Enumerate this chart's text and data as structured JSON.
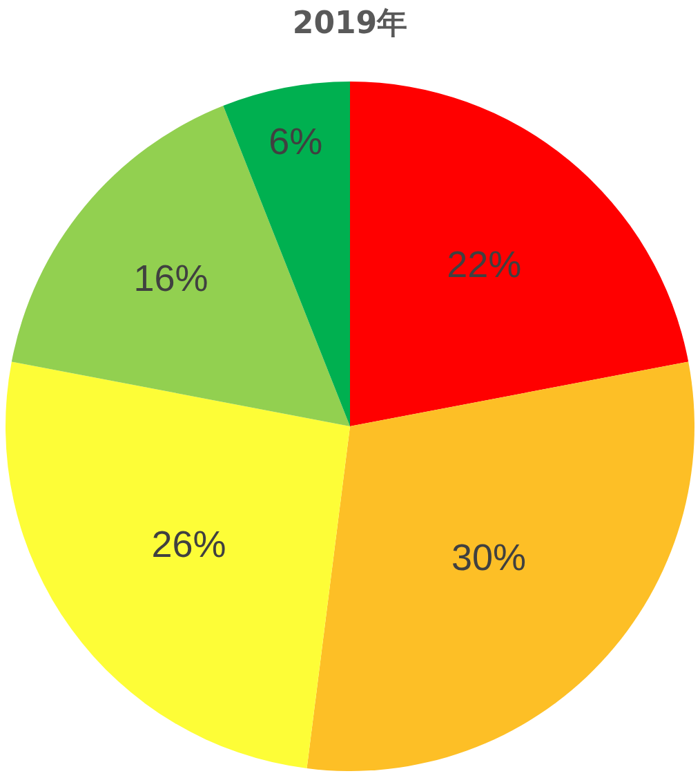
{
  "chart_data": {
    "type": "pie",
    "title": "2019年",
    "categories": [
      null,
      null,
      null,
      null,
      null
    ],
    "values": [
      22,
      30,
      26,
      16,
      6
    ],
    "value_labels": [
      "22%",
      "30%",
      "26%",
      "16%",
      "6%"
    ],
    "colors": [
      "#ff0000",
      "#fdbf26",
      "#fdfd37",
      "#92d050",
      "#00b050"
    ]
  }
}
